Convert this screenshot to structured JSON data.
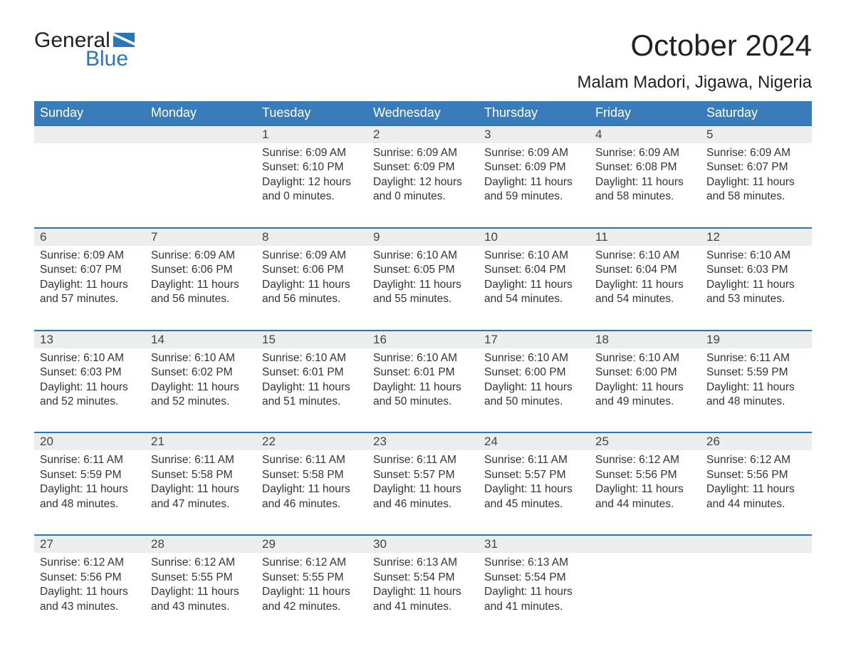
{
  "logo": {
    "word1": "General",
    "word2": "Blue"
  },
  "header": {
    "title": "October 2024",
    "location": "Malam Madori, Jigawa, Nigeria"
  },
  "colors": {
    "header_bg": "#3a7cba",
    "row_sep": "#2876bb",
    "daynum_bg": "#eceded",
    "page_bg": "#ffffff",
    "text": "#333333",
    "logo_blue": "#2876bb"
  },
  "day_names": [
    "Sunday",
    "Monday",
    "Tuesday",
    "Wednesday",
    "Thursday",
    "Friday",
    "Saturday"
  ],
  "weeks": [
    {
      "nums": [
        "",
        "",
        "1",
        "2",
        "3",
        "4",
        "5"
      ],
      "sunrise": [
        "",
        "",
        "Sunrise: 6:09 AM",
        "Sunrise: 6:09 AM",
        "Sunrise: 6:09 AM",
        "Sunrise: 6:09 AM",
        "Sunrise: 6:09 AM"
      ],
      "sunset": [
        "",
        "",
        "Sunset: 6:10 PM",
        "Sunset: 6:09 PM",
        "Sunset: 6:09 PM",
        "Sunset: 6:08 PM",
        "Sunset: 6:07 PM"
      ],
      "day1": [
        "",
        "",
        "Daylight: 12 hours",
        "Daylight: 12 hours",
        "Daylight: 11 hours",
        "Daylight: 11 hours",
        "Daylight: 11 hours"
      ],
      "day2": [
        "",
        "",
        "and 0 minutes.",
        "and 0 minutes.",
        "and 59 minutes.",
        "and 58 minutes.",
        "and 58 minutes."
      ]
    },
    {
      "nums": [
        "6",
        "7",
        "8",
        "9",
        "10",
        "11",
        "12"
      ],
      "sunrise": [
        "Sunrise: 6:09 AM",
        "Sunrise: 6:09 AM",
        "Sunrise: 6:09 AM",
        "Sunrise: 6:10 AM",
        "Sunrise: 6:10 AM",
        "Sunrise: 6:10 AM",
        "Sunrise: 6:10 AM"
      ],
      "sunset": [
        "Sunset: 6:07 PM",
        "Sunset: 6:06 PM",
        "Sunset: 6:06 PM",
        "Sunset: 6:05 PM",
        "Sunset: 6:04 PM",
        "Sunset: 6:04 PM",
        "Sunset: 6:03 PM"
      ],
      "day1": [
        "Daylight: 11 hours",
        "Daylight: 11 hours",
        "Daylight: 11 hours",
        "Daylight: 11 hours",
        "Daylight: 11 hours",
        "Daylight: 11 hours",
        "Daylight: 11 hours"
      ],
      "day2": [
        "and 57 minutes.",
        "and 56 minutes.",
        "and 56 minutes.",
        "and 55 minutes.",
        "and 54 minutes.",
        "and 54 minutes.",
        "and 53 minutes."
      ]
    },
    {
      "nums": [
        "13",
        "14",
        "15",
        "16",
        "17",
        "18",
        "19"
      ],
      "sunrise": [
        "Sunrise: 6:10 AM",
        "Sunrise: 6:10 AM",
        "Sunrise: 6:10 AM",
        "Sunrise: 6:10 AM",
        "Sunrise: 6:10 AM",
        "Sunrise: 6:10 AM",
        "Sunrise: 6:11 AM"
      ],
      "sunset": [
        "Sunset: 6:03 PM",
        "Sunset: 6:02 PM",
        "Sunset: 6:01 PM",
        "Sunset: 6:01 PM",
        "Sunset: 6:00 PM",
        "Sunset: 6:00 PM",
        "Sunset: 5:59 PM"
      ],
      "day1": [
        "Daylight: 11 hours",
        "Daylight: 11 hours",
        "Daylight: 11 hours",
        "Daylight: 11 hours",
        "Daylight: 11 hours",
        "Daylight: 11 hours",
        "Daylight: 11 hours"
      ],
      "day2": [
        "and 52 minutes.",
        "and 52 minutes.",
        "and 51 minutes.",
        "and 50 minutes.",
        "and 50 minutes.",
        "and 49 minutes.",
        "and 48 minutes."
      ]
    },
    {
      "nums": [
        "20",
        "21",
        "22",
        "23",
        "24",
        "25",
        "26"
      ],
      "sunrise": [
        "Sunrise: 6:11 AM",
        "Sunrise: 6:11 AM",
        "Sunrise: 6:11 AM",
        "Sunrise: 6:11 AM",
        "Sunrise: 6:11 AM",
        "Sunrise: 6:12 AM",
        "Sunrise: 6:12 AM"
      ],
      "sunset": [
        "Sunset: 5:59 PM",
        "Sunset: 5:58 PM",
        "Sunset: 5:58 PM",
        "Sunset: 5:57 PM",
        "Sunset: 5:57 PM",
        "Sunset: 5:56 PM",
        "Sunset: 5:56 PM"
      ],
      "day1": [
        "Daylight: 11 hours",
        "Daylight: 11 hours",
        "Daylight: 11 hours",
        "Daylight: 11 hours",
        "Daylight: 11 hours",
        "Daylight: 11 hours",
        "Daylight: 11 hours"
      ],
      "day2": [
        "and 48 minutes.",
        "and 47 minutes.",
        "and 46 minutes.",
        "and 46 minutes.",
        "and 45 minutes.",
        "and 44 minutes.",
        "and 44 minutes."
      ]
    },
    {
      "nums": [
        "27",
        "28",
        "29",
        "30",
        "31",
        "",
        ""
      ],
      "sunrise": [
        "Sunrise: 6:12 AM",
        "Sunrise: 6:12 AM",
        "Sunrise: 6:12 AM",
        "Sunrise: 6:13 AM",
        "Sunrise: 6:13 AM",
        "",
        ""
      ],
      "sunset": [
        "Sunset: 5:56 PM",
        "Sunset: 5:55 PM",
        "Sunset: 5:55 PM",
        "Sunset: 5:54 PM",
        "Sunset: 5:54 PM",
        "",
        ""
      ],
      "day1": [
        "Daylight: 11 hours",
        "Daylight: 11 hours",
        "Daylight: 11 hours",
        "Daylight: 11 hours",
        "Daylight: 11 hours",
        "",
        ""
      ],
      "day2": [
        "and 43 minutes.",
        "and 43 minutes.",
        "and 42 minutes.",
        "and 41 minutes.",
        "and 41 minutes.",
        "",
        ""
      ]
    }
  ]
}
